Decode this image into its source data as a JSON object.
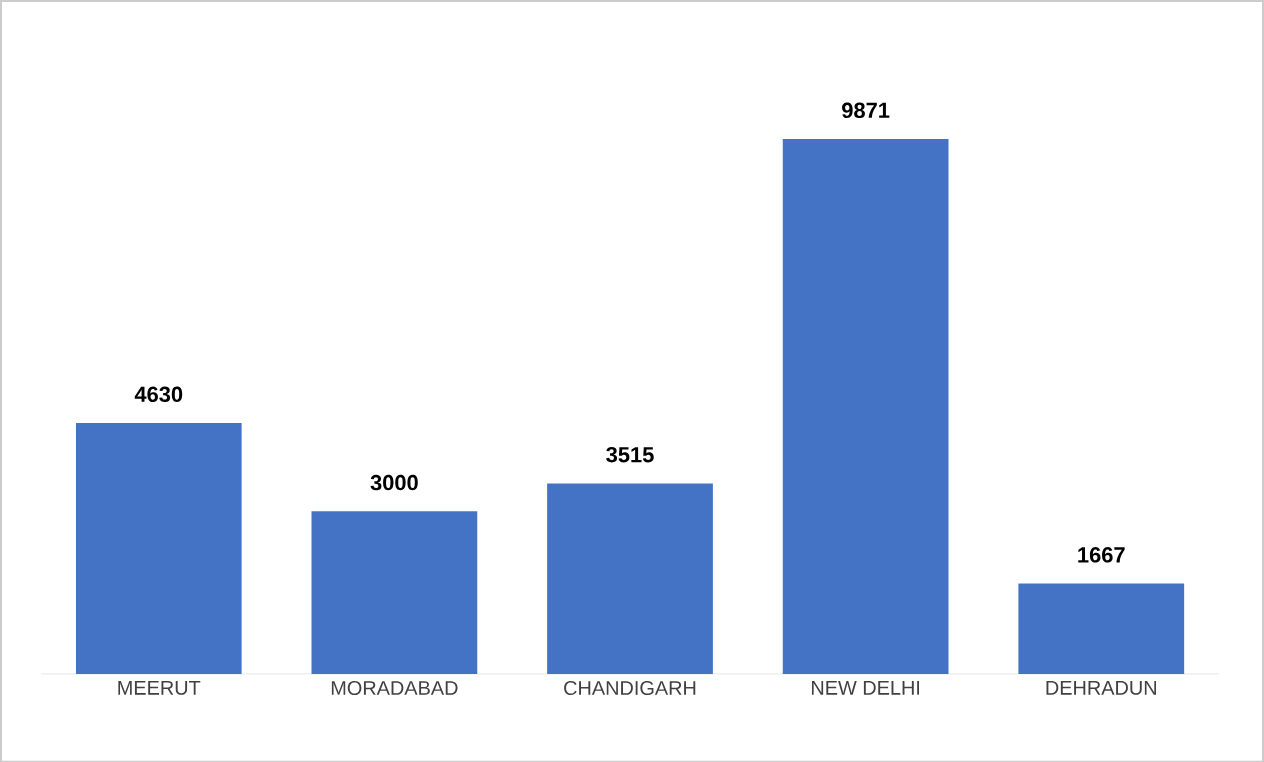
{
  "chart_data": {
    "type": "bar",
    "categories": [
      "MEERUT",
      "MORADABAD",
      "CHANDIGARH",
      "NEW DELHI",
      "DEHRADUN"
    ],
    "values": [
      4630,
      3000,
      3515,
      9871,
      1667
    ],
    "color": "#4472c4",
    "data_labels": true,
    "value_labels": [
      "4630",
      "3000",
      "3515",
      "9871",
      "1667"
    ],
    "tick_labels": "x"
  }
}
